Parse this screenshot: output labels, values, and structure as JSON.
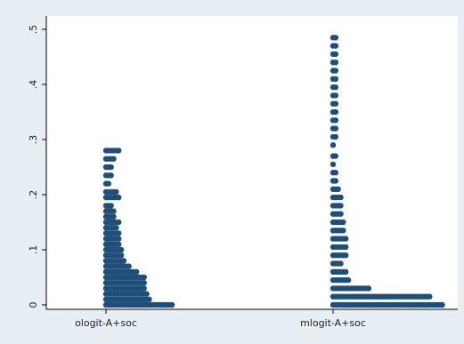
{
  "chart_data": {
    "type": "scatter",
    "style": "dot-histogram",
    "categories": [
      "ologit-A+soc",
      "mlogit-A+soc"
    ],
    "ylim": [
      0,
      0.5
    ],
    "yticks": [
      {
        "value": 0,
        "label": "0"
      },
      {
        "value": 0.1,
        "label": ".1"
      },
      {
        "value": 0.2,
        "label": ".2"
      },
      {
        "value": 0.3,
        "label": ".3"
      },
      {
        "value": 0.4,
        "label": ".4"
      },
      {
        "value": 0.5,
        "label": ".5"
      }
    ],
    "grid": false,
    "marker_color": "#1f4e79",
    "series": [
      {
        "category": "ologit-A+soc",
        "bins": [
          {
            "y": 0.0,
            "count": 27
          },
          {
            "y": 0.01,
            "count": 18
          },
          {
            "y": 0.02,
            "count": 17
          },
          {
            "y": 0.03,
            "count": 16
          },
          {
            "y": 0.04,
            "count": 16
          },
          {
            "y": 0.05,
            "count": 16
          },
          {
            "y": 0.06,
            "count": 13
          },
          {
            "y": 0.07,
            "count": 10
          },
          {
            "y": 0.08,
            "count": 8
          },
          {
            "y": 0.09,
            "count": 7
          },
          {
            "y": 0.1,
            "count": 7
          },
          {
            "y": 0.11,
            "count": 6
          },
          {
            "y": 0.12,
            "count": 6
          },
          {
            "y": 0.13,
            "count": 6
          },
          {
            "y": 0.14,
            "count": 5
          },
          {
            "y": 0.15,
            "count": 6
          },
          {
            "y": 0.16,
            "count": 4
          },
          {
            "y": 0.17,
            "count": 4
          },
          {
            "y": 0.18,
            "count": 3
          },
          {
            "y": 0.195,
            "count": 6
          },
          {
            "y": 0.205,
            "count": 5
          },
          {
            "y": 0.22,
            "count": 2
          },
          {
            "y": 0.235,
            "count": 3
          },
          {
            "y": 0.25,
            "count": 3
          },
          {
            "y": 0.265,
            "count": 4
          },
          {
            "y": 0.28,
            "count": 6
          }
        ]
      },
      {
        "category": "mlogit-A+soc",
        "bins": [
          {
            "y": 0.0,
            "count": 44
          },
          {
            "y": 0.015,
            "count": 39
          },
          {
            "y": 0.03,
            "count": 15
          },
          {
            "y": 0.045,
            "count": 7
          },
          {
            "y": 0.06,
            "count": 6
          },
          {
            "y": 0.075,
            "count": 4
          },
          {
            "y": 0.09,
            "count": 6
          },
          {
            "y": 0.105,
            "count": 6
          },
          {
            "y": 0.12,
            "count": 6
          },
          {
            "y": 0.135,
            "count": 5
          },
          {
            "y": 0.15,
            "count": 5
          },
          {
            "y": 0.165,
            "count": 4
          },
          {
            "y": 0.18,
            "count": 4
          },
          {
            "y": 0.195,
            "count": 4
          },
          {
            "y": 0.21,
            "count": 3
          },
          {
            "y": 0.225,
            "count": 2
          },
          {
            "y": 0.24,
            "count": 2
          },
          {
            "y": 0.255,
            "count": 1
          },
          {
            "y": 0.27,
            "count": 2
          },
          {
            "y": 0.29,
            "count": 1
          },
          {
            "y": 0.305,
            "count": 2
          },
          {
            "y": 0.32,
            "count": 2
          },
          {
            "y": 0.335,
            "count": 2
          },
          {
            "y": 0.35,
            "count": 2
          },
          {
            "y": 0.365,
            "count": 2
          },
          {
            "y": 0.38,
            "count": 2
          },
          {
            "y": 0.395,
            "count": 2
          },
          {
            "y": 0.41,
            "count": 2
          },
          {
            "y": 0.425,
            "count": 2
          },
          {
            "y": 0.44,
            "count": 2
          },
          {
            "y": 0.455,
            "count": 2
          },
          {
            "y": 0.47,
            "count": 2
          },
          {
            "y": 0.485,
            "count": 2
          }
        ]
      }
    ]
  }
}
